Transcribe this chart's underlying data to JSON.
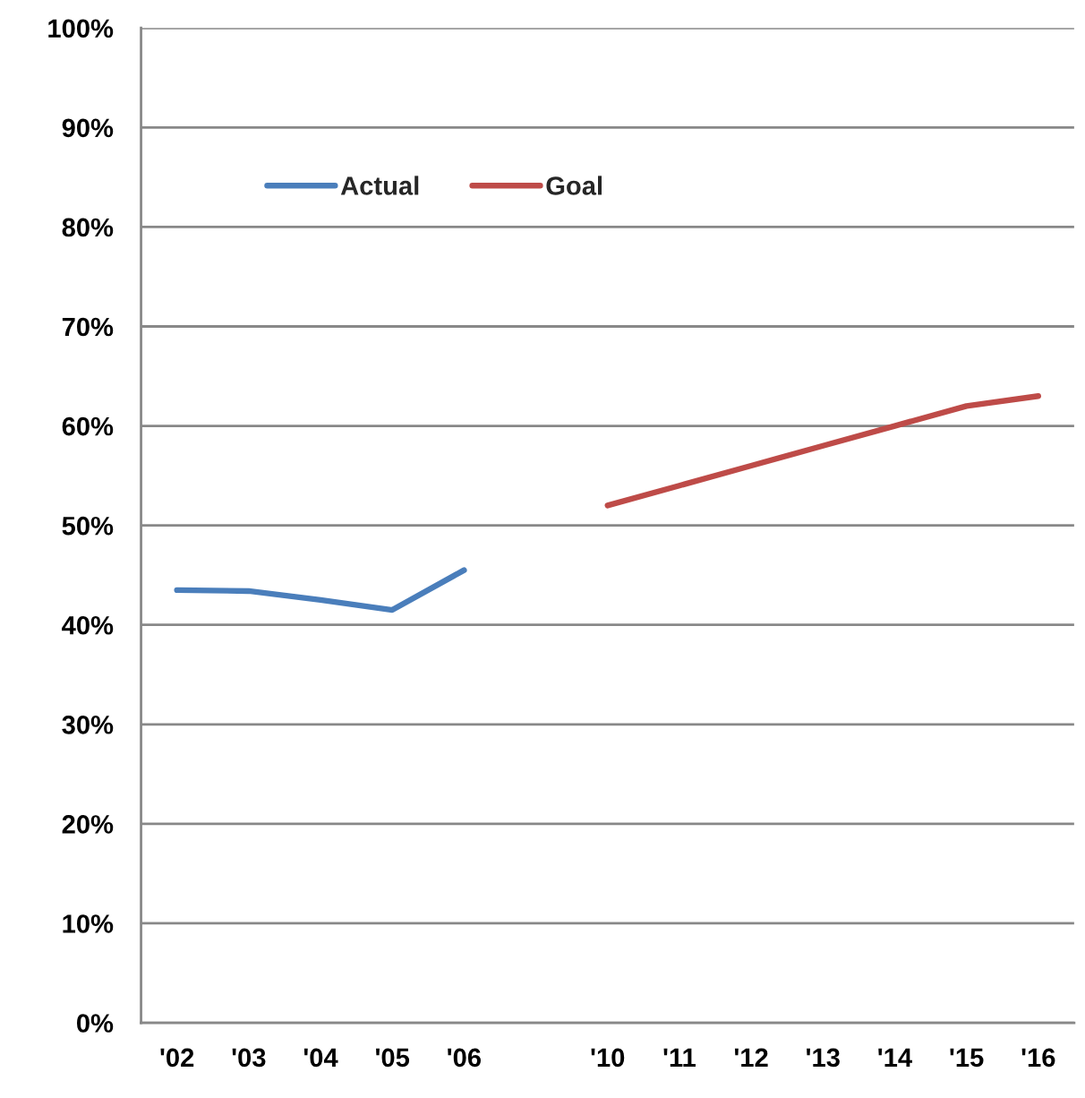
{
  "chart_data": {
    "type": "line",
    "categories": [
      "'02",
      "'03",
      "'04",
      "'05",
      "'06",
      null,
      "'10",
      "'11",
      "'12",
      "'13",
      "'14",
      "'15",
      "'16"
    ],
    "series": [
      {
        "name": "Actual",
        "color": "#4a7ebb",
        "values": [
          43.5,
          43.4,
          42.5,
          41.5,
          45.5,
          null,
          null,
          null,
          null,
          null,
          null,
          null,
          null
        ]
      },
      {
        "name": "Goal",
        "color": "#be4b48",
        "values": [
          null,
          null,
          null,
          null,
          null,
          null,
          52,
          54,
          56,
          58,
          60,
          62,
          63
        ]
      }
    ],
    "ylim": [
      0,
      100
    ],
    "yticks": [
      {
        "value": 0,
        "label": "0%"
      },
      {
        "value": 10,
        "label": "10%"
      },
      {
        "value": 20,
        "label": "20%"
      },
      {
        "value": 30,
        "label": "30%"
      },
      {
        "value": 40,
        "label": "40%"
      },
      {
        "value": 50,
        "label": "50%"
      },
      {
        "value": 60,
        "label": "60%"
      },
      {
        "value": 70,
        "label": "70%"
      },
      {
        "value": 80,
        "label": "80%"
      },
      {
        "value": 90,
        "label": "90%"
      },
      {
        "value": 100,
        "label": "100%"
      }
    ],
    "grid": "y",
    "legend": "top left",
    "marker": "none",
    "line_style": "solid"
  }
}
